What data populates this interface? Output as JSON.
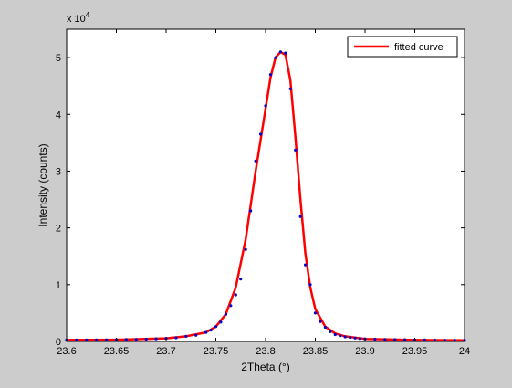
{
  "chart_data": {
    "type": "line",
    "title": "",
    "xlabel": "2Theta (°)",
    "ylabel": "Intensity (counts)",
    "xlim": [
      23.6,
      24.0
    ],
    "ylim": [
      0,
      55000
    ],
    "x_ticks": [
      23.6,
      23.65,
      23.7,
      23.75,
      23.8,
      23.85,
      23.9,
      23.95,
      24.0
    ],
    "x_tick_labels": [
      "23.6",
      "23.65",
      "23.7",
      "23.75",
      "23.8",
      "23.85",
      "23.9",
      "23.95",
      "24"
    ],
    "y_ticks": [
      0,
      10000,
      20000,
      30000,
      40000,
      50000
    ],
    "y_tick_labels": [
      "0",
      "1",
      "2",
      "3",
      "4",
      "5"
    ],
    "y_exponent_label": "x 10",
    "y_exponent_power": "4",
    "grid": false,
    "legend": {
      "position": "top-right",
      "entries": [
        "fitted curve"
      ]
    },
    "series": [
      {
        "name": "fitted curve",
        "style": "line",
        "color": "#ff0000",
        "x": [
          23.6,
          23.65,
          23.7,
          23.72,
          23.74,
          23.75,
          23.76,
          23.77,
          23.78,
          23.79,
          23.8,
          23.805,
          23.81,
          23.815,
          23.82,
          23.825,
          23.83,
          23.835,
          23.84,
          23.845,
          23.85,
          23.86,
          23.87,
          23.88,
          23.9,
          23.95,
          24.0
        ],
        "y": [
          250,
          300,
          550,
          900,
          1600,
          2600,
          4800,
          9500,
          18000,
          30000,
          41000,
          46500,
          50000,
          51000,
          50500,
          46000,
          36000,
          25000,
          15500,
          9500,
          5700,
          2600,
          1400,
          900,
          450,
          250,
          200
        ]
      },
      {
        "name": "",
        "style": "markers",
        "color": "#0000cc",
        "x": [
          23.6,
          23.61,
          23.62,
          23.63,
          23.64,
          23.65,
          23.66,
          23.67,
          23.68,
          23.69,
          23.7,
          23.71,
          23.72,
          23.73,
          23.74,
          23.745,
          23.75,
          23.755,
          23.76,
          23.765,
          23.77,
          23.775,
          23.78,
          23.785,
          23.79,
          23.795,
          23.8,
          23.805,
          23.81,
          23.815,
          23.82,
          23.825,
          23.83,
          23.835,
          23.84,
          23.845,
          23.85,
          23.855,
          23.86,
          23.865,
          23.87,
          23.875,
          23.88,
          23.885,
          23.89,
          23.895,
          23.9,
          23.91,
          23.92,
          23.93,
          23.94,
          23.95,
          23.96,
          23.97,
          23.98,
          23.99,
          24.0
        ],
        "y": [
          250,
          260,
          270,
          280,
          290,
          300,
          330,
          360,
          400,
          460,
          550,
          650,
          900,
          1100,
          1600,
          2000,
          2600,
          3400,
          4800,
          6300,
          8200,
          11000,
          16200,
          23000,
          31800,
          36500,
          41500,
          47000,
          50000,
          51000,
          50800,
          44500,
          33700,
          22000,
          13500,
          10000,
          5000,
          3500,
          2500,
          1700,
          1200,
          1000,
          800,
          700,
          600,
          500,
          450,
          400,
          350,
          320,
          300,
          280,
          260,
          240,
          230,
          210,
          200
        ]
      }
    ]
  }
}
